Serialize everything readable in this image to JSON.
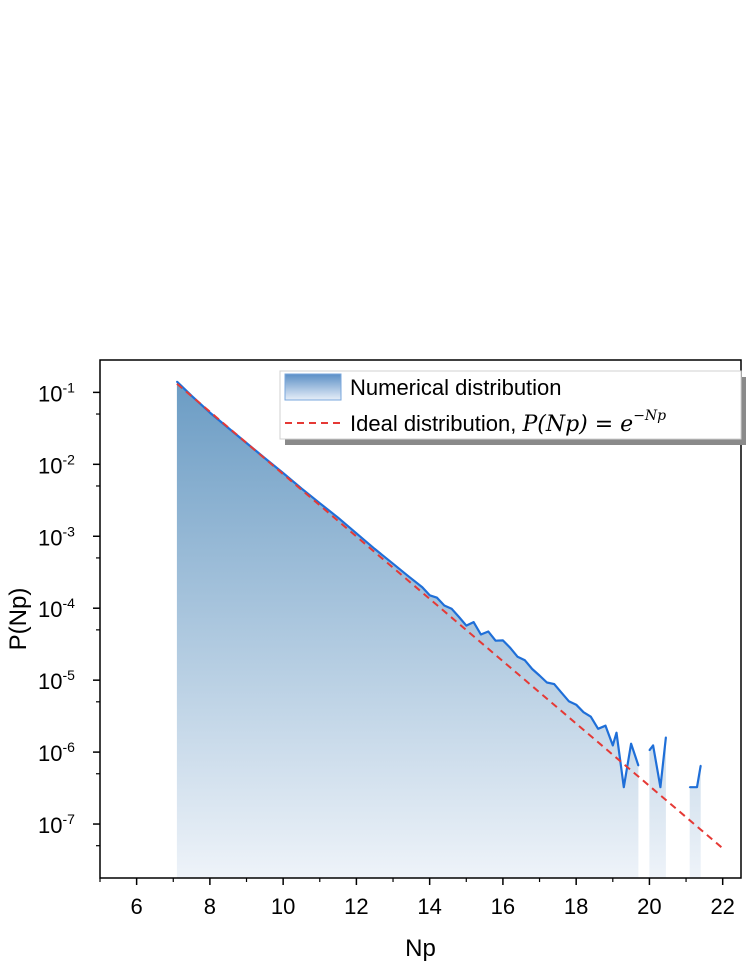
{
  "chart_data": {
    "type": "area",
    "xlabel": "Np",
    "ylabel": "P(Np)",
    "xlim": [
      5,
      22.5
    ],
    "ylim_log10": [
      -7.75,
      -0.55
    ],
    "yscale": "log",
    "x_ticks": [
      6,
      8,
      10,
      12,
      14,
      16,
      18,
      20,
      22
    ],
    "x_tick_labels": [
      "6",
      "8",
      "10",
      "12",
      "14",
      "16",
      "18",
      "20",
      "22"
    ],
    "y_ticks_exponents": [
      -1,
      -2,
      -3,
      -4,
      -5,
      -6,
      -7
    ],
    "y_tick_base": "10",
    "y_tick_exp_labels": [
      "-1",
      "-2",
      "-3",
      "-4",
      "-5",
      "-6",
      "-7"
    ],
    "legend": {
      "position": "top-right",
      "numerical_label": "Numerical distribution",
      "ideal_label_prefix": "Ideal distribution, ",
      "ideal_formula_lhs": "P(Np) = e",
      "ideal_formula_exp": "−Np"
    },
    "colors": {
      "numerical_line": "#1f6fd8",
      "numerical_fill_top": "#6b9cc4",
      "numerical_fill_bottom": "#eef3f9",
      "ideal_line": "#e53935",
      "axis": "#000000"
    },
    "series": [
      {
        "name": "Numerical distribution",
        "style": "area",
        "segments": [
          {
            "x": [
              7.1,
              7.5,
              8.0,
              8.5,
              9.0,
              9.5,
              10.0,
              10.5,
              11.0,
              11.5,
              12.0,
              12.5,
              13.0,
              13.4,
              13.8,
              14.0,
              14.2,
              14.4,
              14.6,
              14.8,
              15.0,
              15.2,
              15.4,
              15.6,
              15.8,
              16.0,
              16.2,
              16.4,
              16.6,
              16.8,
              17.0,
              17.2,
              17.4,
              17.6,
              17.8,
              18.0,
              18.2,
              18.4,
              18.6,
              18.8,
              19.0,
              19.1,
              19.3,
              19.5,
              19.7
            ],
            "y": [
              0.141,
              0.0897,
              0.0523,
              0.0321,
              0.0198,
              0.0122,
              0.00758,
              0.00461,
              0.00288,
              0.00181,
              0.0011,
              0.000667,
              0.000415,
              0.000283,
              0.000196,
              0.000151,
              0.00014,
              0.000109,
              9.85e-05,
              7.55e-05,
              5.74e-05,
              6.42e-05,
              4.31e-05,
              4.75e-05,
              3.53e-05,
              3.57e-05,
              2.82e-05,
              2.11e-05,
              1.89e-05,
              1.43e-05,
              1.16e-05,
              9.29e-06,
              8.8e-06,
              6.7e-06,
              5.1e-06,
              4.56e-06,
              3.58e-06,
              3.1e-06,
              2.11e-06,
              2.33e-06,
              1.24e-06,
              1.86e-06,
              3.25e-07,
              1.31e-06,
              6.5e-07
            ]
          },
          {
            "x": [
              20.0,
              20.1,
              20.3,
              20.45
            ],
            "y": [
              1.06e-06,
              1.24e-06,
              3.25e-07,
              1.61e-06
            ]
          },
          {
            "x": [
              21.1,
              21.3,
              21.4
            ],
            "y": [
              3.25e-07,
              3.25e-07,
              6.5e-07
            ]
          }
        ]
      },
      {
        "name": "Ideal distribution",
        "style": "dashed-line",
        "x": [
          7.1,
          22.0
        ],
        "y": [
          0.132,
          4.6e-08
        ]
      }
    ]
  }
}
